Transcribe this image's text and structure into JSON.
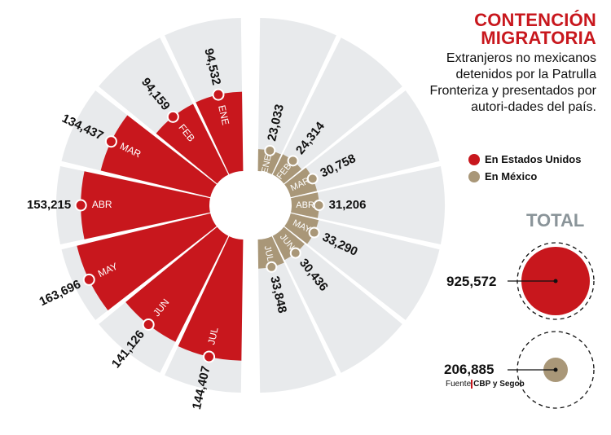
{
  "header": {
    "title_line1": "CONTENCIÓN",
    "title_line2": "MIGRATORIA",
    "subtitle": "Extranjeros no mexicanos detenidos por la Patrulla Fronteriza y presentados por autori-dades del país."
  },
  "legend": [
    {
      "label": "En Estados Unidos",
      "color": "#c8171d"
    },
    {
      "label": "En México",
      "color": "#a99778"
    }
  ],
  "totals": {
    "heading": "TOTAL",
    "us_value": "925,572",
    "mx_value": "206,885"
  },
  "source": {
    "prefix": "Fuente",
    "name": "CBP y Segob"
  },
  "colors": {
    "us": "#c8171d",
    "mx": "#a99778",
    "track": "#e8eaec"
  },
  "chart_data": {
    "type": "bar",
    "subtype": "radial",
    "title": "Contención migratoria",
    "categories": [
      "ENE",
      "FEB",
      "MAR",
      "ABR",
      "MAY",
      "JUN",
      "JUL"
    ],
    "series": [
      {
        "name": "En Estados Unidos",
        "values": [
          94532,
          94159,
          134437,
          153215,
          163696,
          141126,
          144407
        ],
        "labels": [
          "94,532",
          "94,159",
          "134,437",
          "153,215",
          "163,696",
          "141,126",
          "144,407"
        ]
      },
      {
        "name": "En México",
        "values": [
          23033,
          24314,
          30758,
          31206,
          33290,
          30436,
          33848
        ],
        "labels": [
          "23,033",
          "24,314",
          "30,758",
          "31,206",
          "33,290",
          "30,436",
          "33,848"
        ]
      }
    ],
    "totals": {
      "En Estados Unidos": 925572,
      "En México": 206885
    }
  }
}
